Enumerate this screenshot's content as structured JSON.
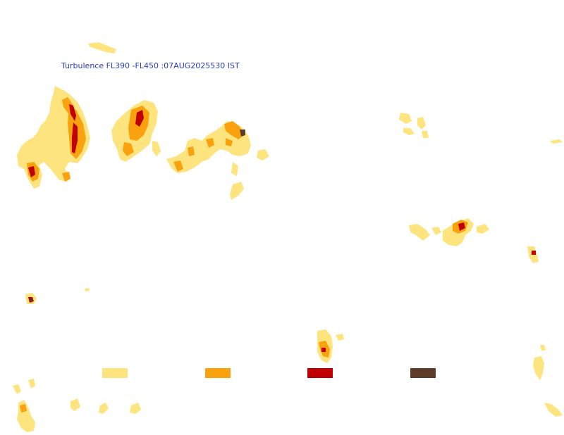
{
  "map": {
    "title": "Turbulence FL390 -FL450 :07AUG2025530 IST"
  },
  "legend": {
    "levels": [
      {
        "color": "#fde47e"
      },
      {
        "color": "#f9a20e"
      },
      {
        "color": "#c00000"
      },
      {
        "color": "#5e3a28"
      }
    ]
  },
  "colors": {
    "light": "#fde47e",
    "moderate": "#f9a20e",
    "severe": "#c00000",
    "extreme": "#5e3a28"
  }
}
